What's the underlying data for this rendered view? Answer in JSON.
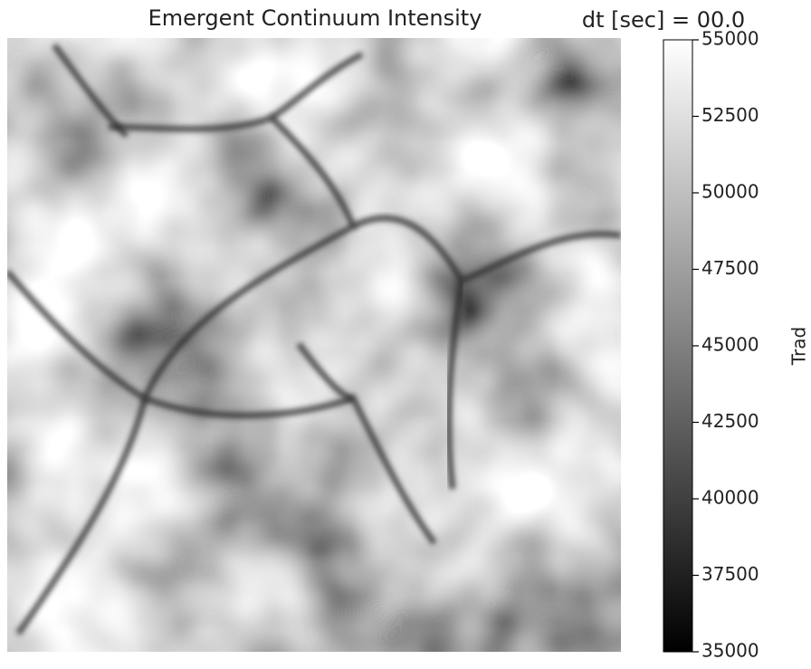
{
  "chart_data": {
    "type": "image",
    "title": "Emergent Continuum Intensity",
    "annotation": "dt [sec] = 00.0",
    "colorbar": {
      "label": "Trad",
      "lim": [
        35000,
        55000
      ],
      "ticks": [
        35000,
        37500,
        40000,
        42500,
        45000,
        47500,
        50000,
        52500,
        55000
      ],
      "colormap": "gray"
    }
  }
}
